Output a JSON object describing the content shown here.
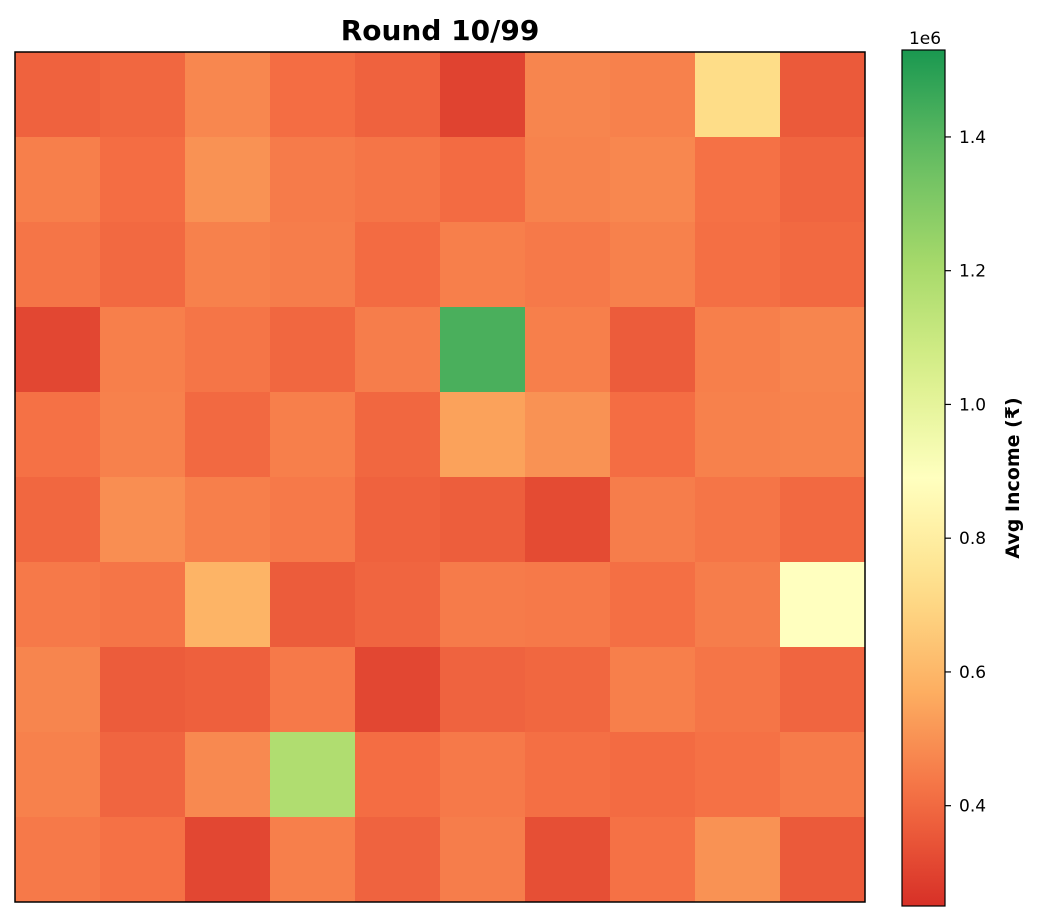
{
  "chart_data": {
    "type": "heatmap",
    "title": "Round 10/99",
    "rows": 10,
    "cols": 10,
    "values": [
      [
        380000,
        395000,
        475000,
        410000,
        380000,
        300000,
        470000,
        460000,
        720000,
        360000
      ],
      [
        455000,
        410000,
        500000,
        445000,
        430000,
        405000,
        465000,
        475000,
        420000,
        390000
      ],
      [
        430000,
        400000,
        460000,
        450000,
        405000,
        455000,
        440000,
        460000,
        415000,
        400000
      ],
      [
        310000,
        455000,
        430000,
        395000,
        450000,
        1430000,
        455000,
        365000,
        455000,
        470000
      ],
      [
        420000,
        460000,
        400000,
        455000,
        395000,
        540000,
        500000,
        410000,
        460000,
        465000
      ],
      [
        395000,
        490000,
        455000,
        440000,
        380000,
        370000,
        320000,
        450000,
        430000,
        400000
      ],
      [
        440000,
        430000,
        590000,
        365000,
        390000,
        445000,
        440000,
        415000,
        450000,
        890000
      ],
      [
        470000,
        365000,
        375000,
        440000,
        310000,
        385000,
        395000,
        455000,
        430000,
        390000
      ],
      [
        460000,
        390000,
        480000,
        1180000,
        410000,
        440000,
        415000,
        405000,
        420000,
        445000
      ],
      [
        440000,
        420000,
        310000,
        455000,
        385000,
        450000,
        330000,
        420000,
        500000,
        360000
      ]
    ],
    "colorbar": {
      "label": "Avg Income (₹)",
      "exponent_label": "1e6",
      "min": 250000,
      "max": 1530000,
      "ticks": [
        400000,
        600000,
        800000,
        1000000,
        1200000,
        1400000
      ],
      "tick_labels": [
        "0.4",
        "0.6",
        "0.8",
        "1.0",
        "1.2",
        "1.4"
      ],
      "colormap": "RdYlGn"
    },
    "grid": false
  }
}
